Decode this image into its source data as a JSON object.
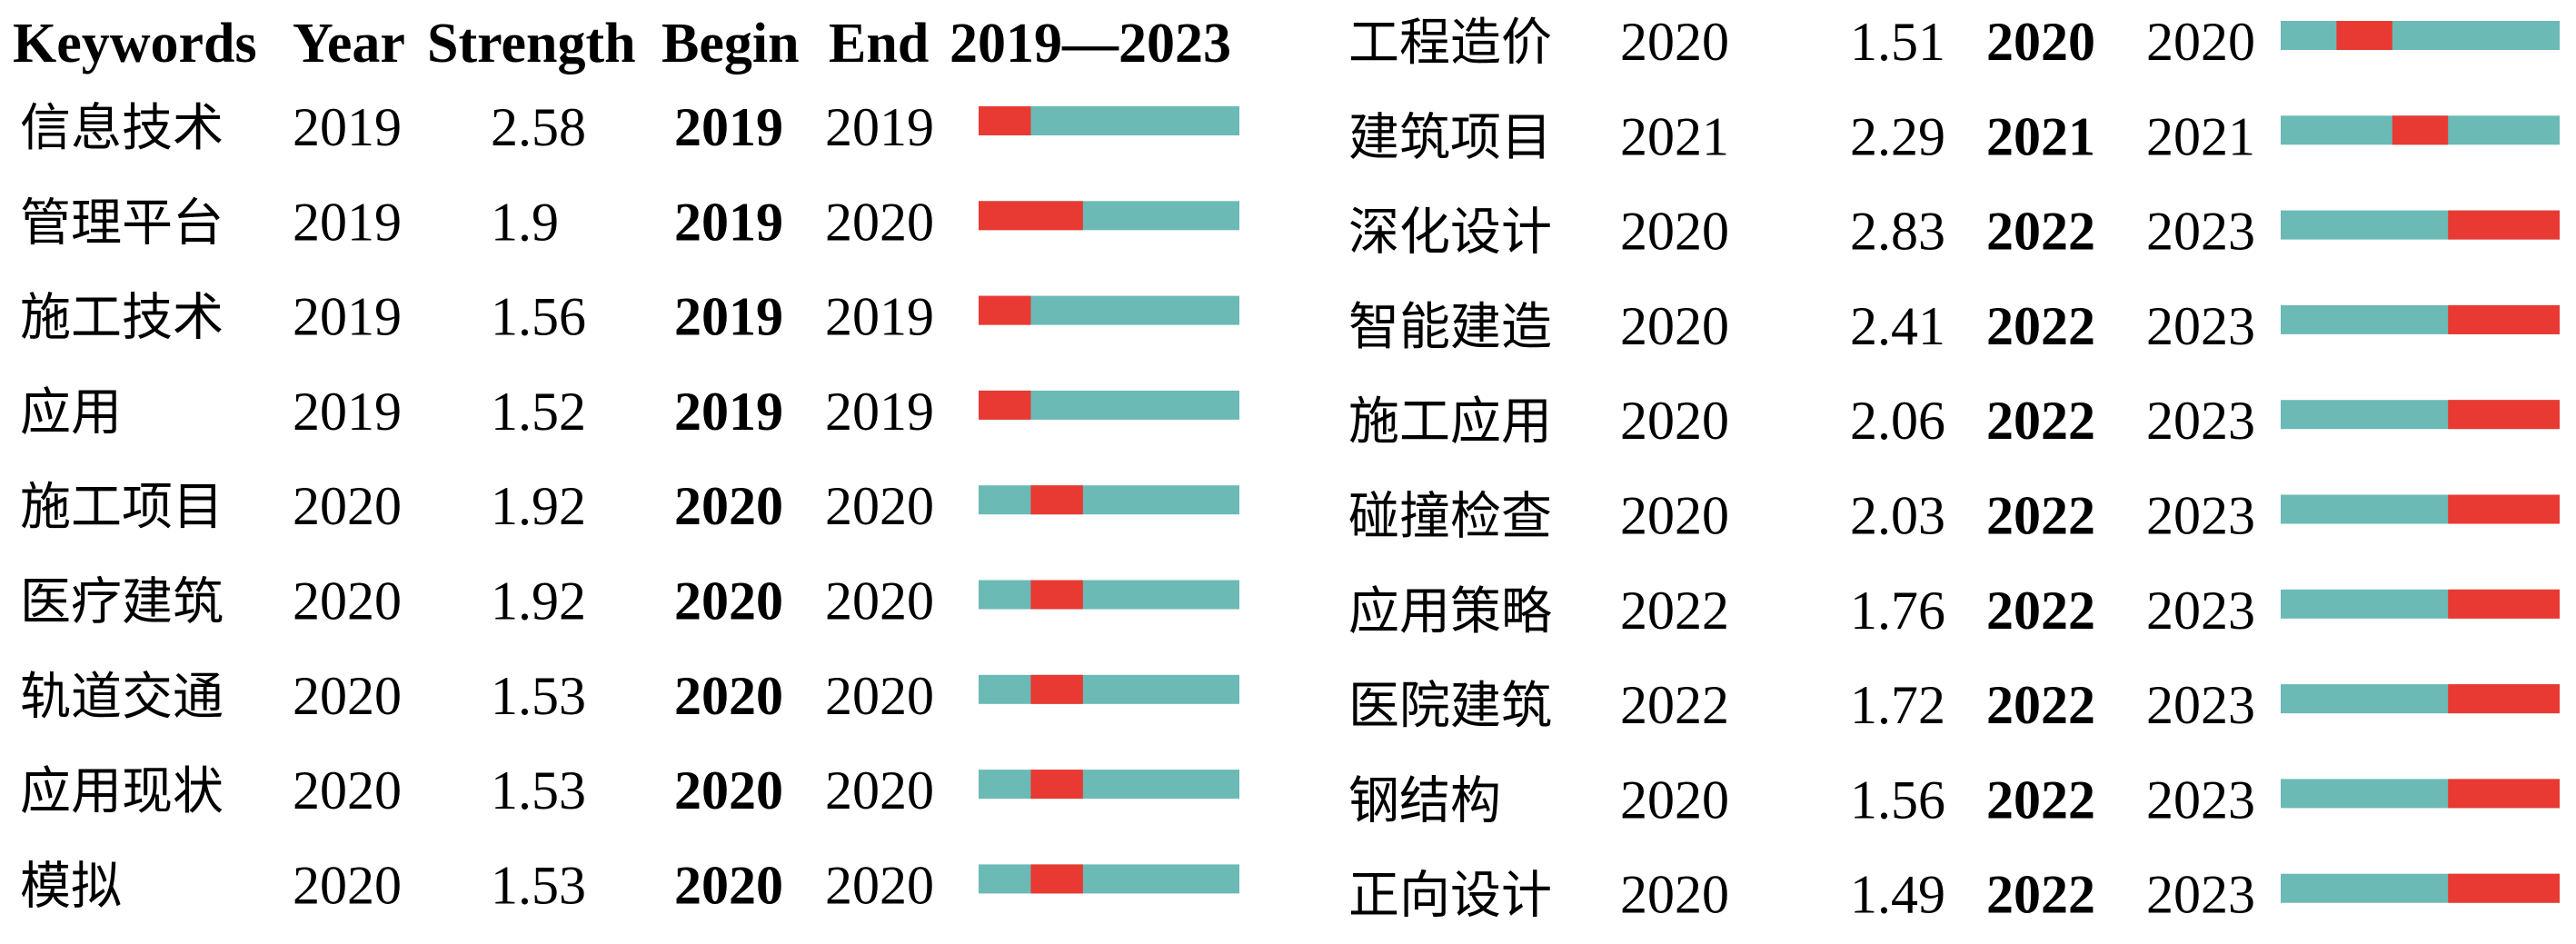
{
  "chart_data": {
    "type": "table",
    "header": {
      "keywords": "Keywords",
      "year": "Year",
      "strength": "Strength",
      "begin": "Begin",
      "end": "End",
      "range": "2019—2023"
    },
    "time_range": [
      2019,
      2023
    ],
    "colors": {
      "normal": "#6bbab5",
      "burst": "#e83a33"
    },
    "rows": [
      {
        "keyword": "信息技术",
        "year": "2019",
        "strength": "2.58",
        "begin": "2019",
        "end": "2019"
      },
      {
        "keyword": "管理平台",
        "year": "2019",
        "strength": "1.9",
        "begin": "2019",
        "end": "2020"
      },
      {
        "keyword": "施工技术",
        "year": "2019",
        "strength": "1.56",
        "begin": "2019",
        "end": "2019"
      },
      {
        "keyword": "应用",
        "year": "2019",
        "strength": "1.52",
        "begin": "2019",
        "end": "2019"
      },
      {
        "keyword": "施工项目",
        "year": "2020",
        "strength": "1.92",
        "begin": "2020",
        "end": "2020"
      },
      {
        "keyword": "医疗建筑",
        "year": "2020",
        "strength": "1.92",
        "begin": "2020",
        "end": "2020"
      },
      {
        "keyword": "轨道交通",
        "year": "2020",
        "strength": "1.53",
        "begin": "2020",
        "end": "2020"
      },
      {
        "keyword": "应用现状",
        "year": "2020",
        "strength": "1.53",
        "begin": "2020",
        "end": "2020"
      },
      {
        "keyword": "模拟",
        "year": "2020",
        "strength": "1.53",
        "begin": "2020",
        "end": "2020"
      },
      {
        "keyword": "工程造价",
        "year": "2020",
        "strength": "1.51",
        "begin": "2020",
        "end": "2020"
      },
      {
        "keyword": "建筑项目",
        "year": "2021",
        "strength": "2.29",
        "begin": "2021",
        "end": "2021"
      },
      {
        "keyword": "深化设计",
        "year": "2020",
        "strength": "2.83",
        "begin": "2022",
        "end": "2023"
      },
      {
        "keyword": "智能建造",
        "year": "2020",
        "strength": "2.41",
        "begin": "2022",
        "end": "2023"
      },
      {
        "keyword": "施工应用",
        "year": "2020",
        "strength": "2.06",
        "begin": "2022",
        "end": "2023"
      },
      {
        "keyword": "碰撞检查",
        "year": "2020",
        "strength": "2.03",
        "begin": "2022",
        "end": "2023"
      },
      {
        "keyword": "应用策略",
        "year": "2022",
        "strength": "1.76",
        "begin": "2022",
        "end": "2023"
      },
      {
        "keyword": "医院建筑",
        "year": "2022",
        "strength": "1.72",
        "begin": "2022",
        "end": "2023"
      },
      {
        "keyword": "钢结构",
        "year": "2020",
        "strength": "1.56",
        "begin": "2022",
        "end": "2023"
      },
      {
        "keyword": "正向设计",
        "year": "2020",
        "strength": "1.49",
        "begin": "2022",
        "end": "2023"
      }
    ]
  }
}
